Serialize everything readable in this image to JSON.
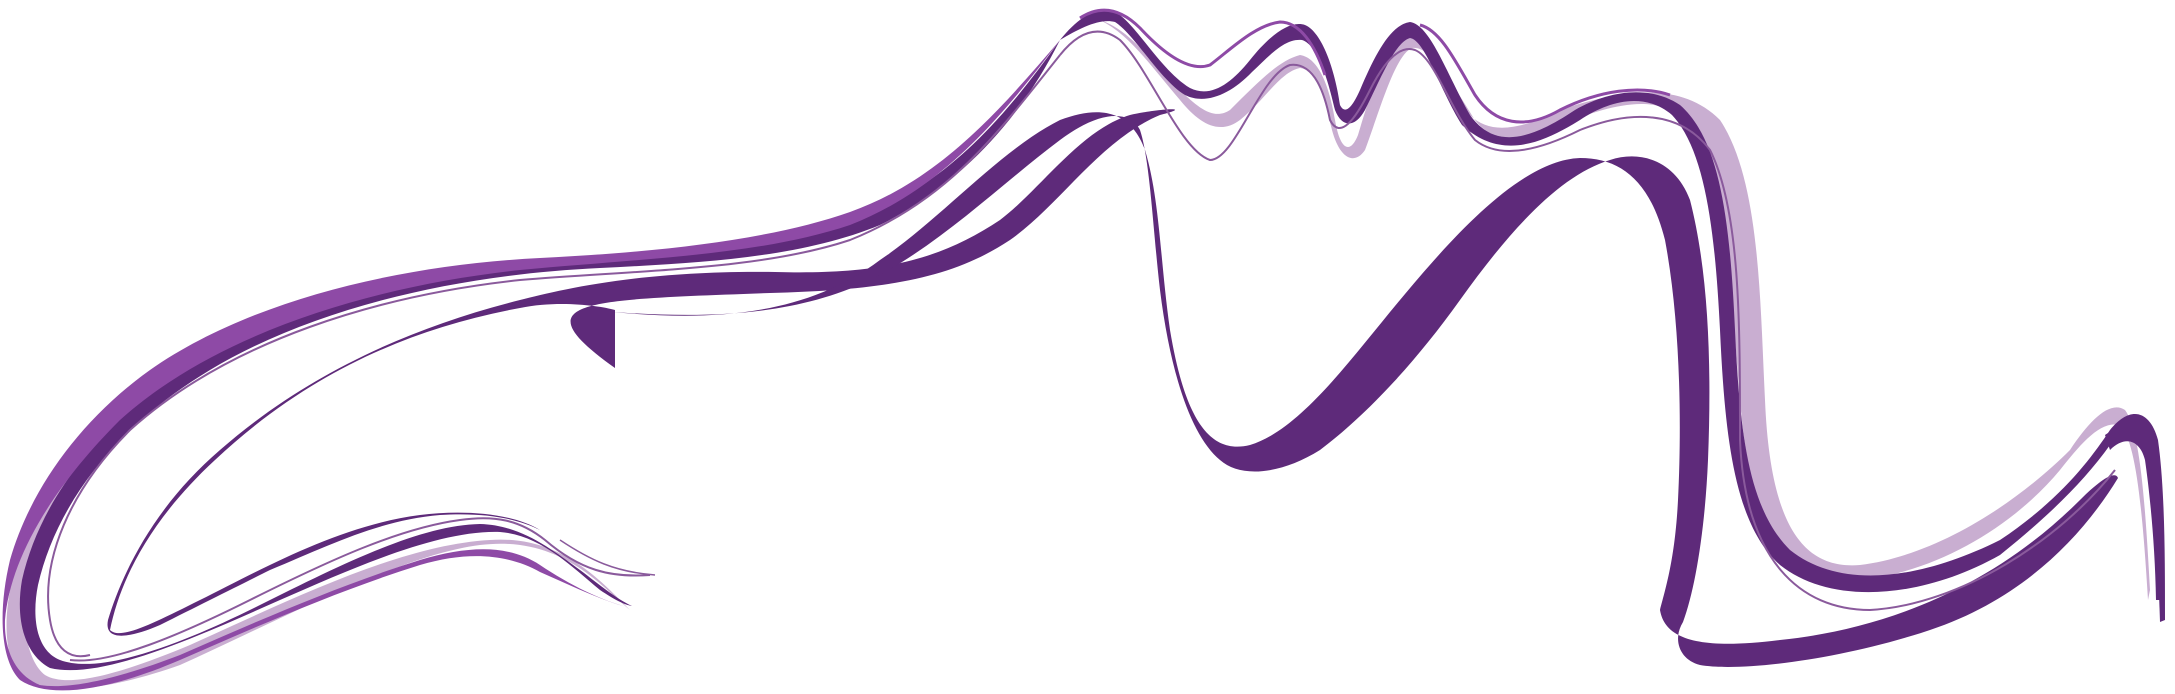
{
  "artwork": {
    "subject": "decorative-swoosh-ribbons",
    "colors": {
      "background": "#ffffff",
      "deep_purple": "#5e2a7a",
      "medium_purple": "#8e4aa6",
      "light_lavender": "#c9aed1",
      "thin_line": "#8a5a9c"
    }
  }
}
